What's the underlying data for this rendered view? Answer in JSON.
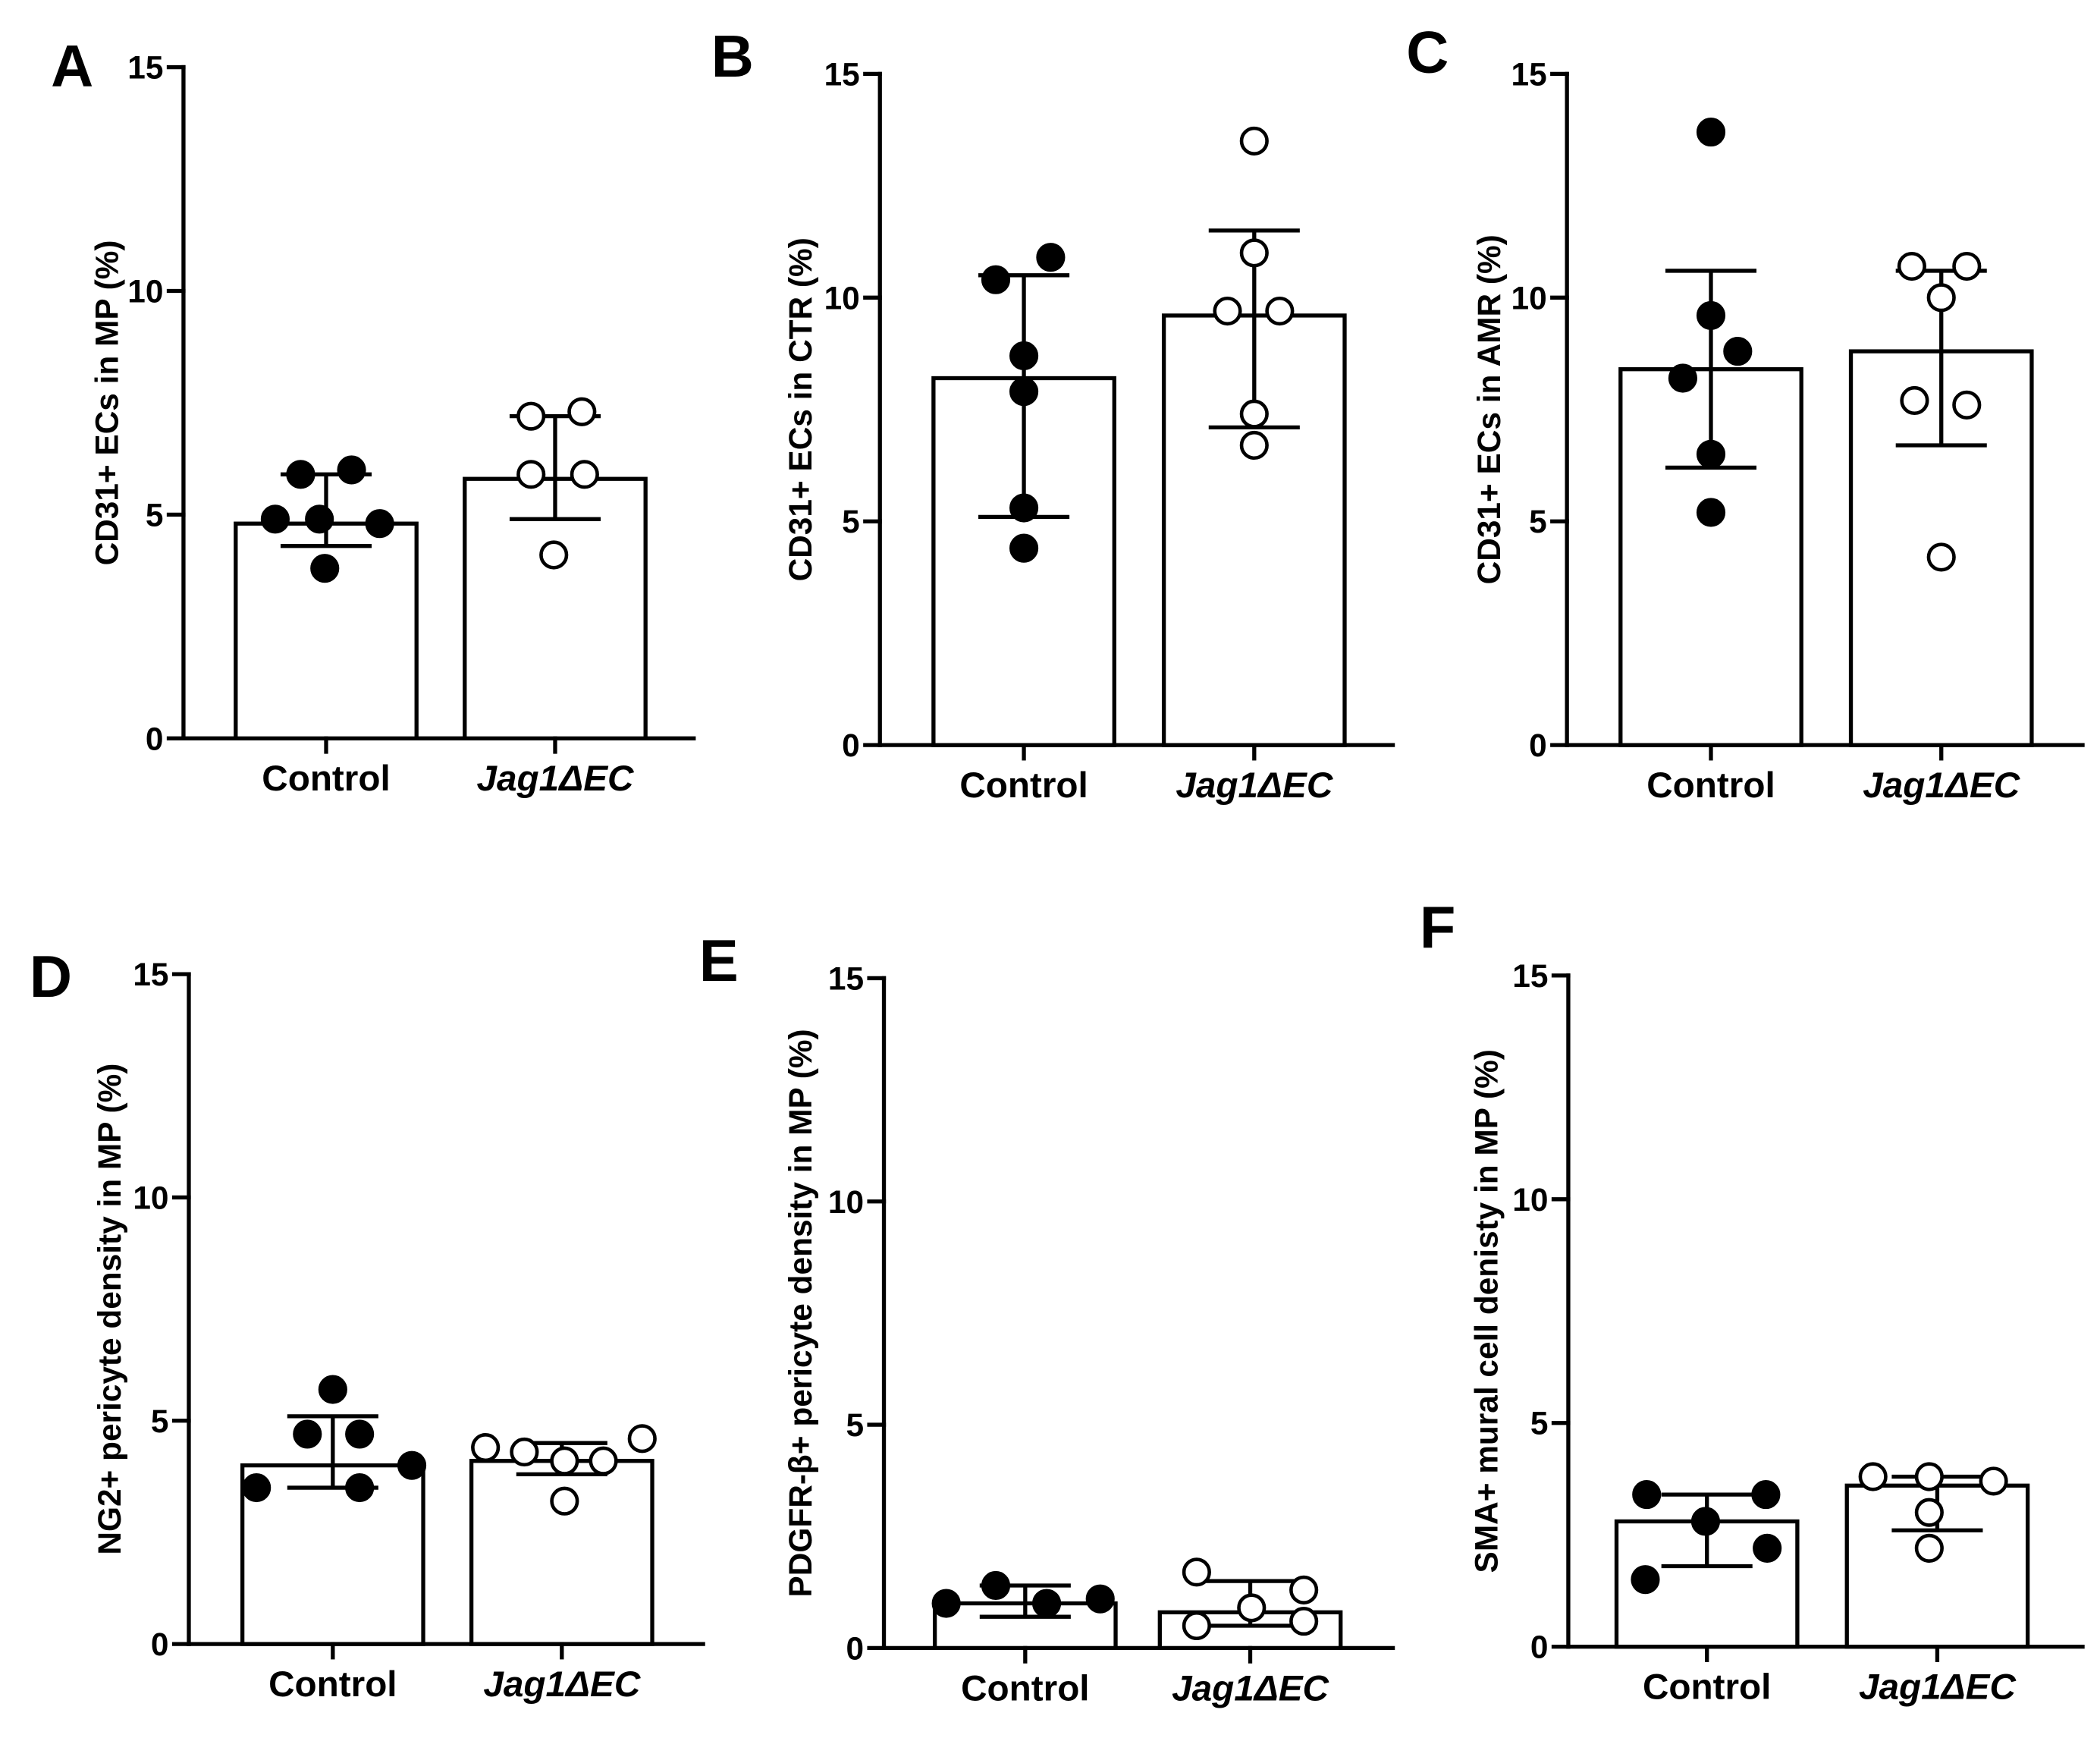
{
  "chart_data": [
    {
      "type": "bar",
      "panel_label": "A",
      "ylabel": "CD31+ ECs in MP (%)",
      "categories": [
        "Control",
        "Jag1ΔEC"
      ],
      "values": [
        4.8,
        5.8
      ],
      "error_low": [
        4.3,
        4.9
      ],
      "error_high": [
        5.9,
        7.2
      ],
      "points": [
        [
          5.9,
          6.0,
          4.9,
          4.9,
          4.8,
          3.8
        ],
        [
          7.2,
          7.3,
          5.9,
          5.9,
          4.1
        ]
      ],
      "marker_fill": [
        "#000000",
        "#ffffff"
      ],
      "ylim": [
        0,
        15
      ],
      "yticks": [
        0,
        5,
        10,
        15
      ]
    },
    {
      "type": "bar",
      "panel_label": "B",
      "ylabel": "CD31+ ECs in CTR (%)",
      "categories": [
        "Control",
        "Jag1ΔEC"
      ],
      "values": [
        8.2,
        9.6
      ],
      "error_low": [
        5.1,
        7.1
      ],
      "error_high": [
        10.5,
        11.5
      ],
      "points": [
        [
          10.4,
          10.9,
          8.7,
          7.9,
          5.3,
          4.4
        ],
        [
          13.5,
          11.0,
          9.7,
          9.7,
          7.4,
          6.7
        ]
      ],
      "marker_fill": [
        "#000000",
        "#ffffff"
      ],
      "ylim": [
        0,
        15
      ],
      "yticks": [
        0,
        5,
        10,
        15
      ]
    },
    {
      "type": "bar",
      "panel_label": "C",
      "ylabel": "CD31+ ECs in AMR (%)",
      "categories": [
        "Control",
        "Jag1ΔEC"
      ],
      "values": [
        8.4,
        8.8
      ],
      "error_low": [
        6.2,
        6.7
      ],
      "error_high": [
        10.6,
        10.6
      ],
      "points": [
        [
          13.7,
          9.6,
          8.8,
          8.2,
          6.5,
          5.2
        ],
        [
          10.7,
          10.7,
          10.0,
          7.7,
          7.6,
          4.2
        ]
      ],
      "marker_fill": [
        "#000000",
        "#ffffff"
      ],
      "ylim": [
        0,
        15
      ],
      "yticks": [
        0,
        5,
        10,
        15
      ]
    },
    {
      "type": "bar",
      "panel_label": "D",
      "ylabel": "NG2+ pericyte density in MP (%)",
      "categories": [
        "Control",
        "Jag1ΔEC"
      ],
      "values": [
        4.0,
        4.1
      ],
      "error_low": [
        3.5,
        3.8
      ],
      "error_high": [
        5.1,
        4.5
      ],
      "points": [
        [
          5.7,
          4.7,
          4.7,
          4.0,
          3.5,
          3.5
        ],
        [
          4.4,
          4.3,
          4.1,
          4.1,
          4.6,
          3.2
        ]
      ],
      "marker_fill": [
        "#000000",
        "#ffffff"
      ],
      "ylim": [
        0,
        15
      ],
      "yticks": [
        0,
        5,
        10,
        15
      ]
    },
    {
      "type": "bar",
      "panel_label": "E",
      "ylabel": "PDGFR-β+ pericyte density in MP (%)",
      "categories": [
        "Control",
        "Jag1ΔEC"
      ],
      "values": [
        1.0,
        0.8
      ],
      "error_low": [
        0.7,
        0.5
      ],
      "error_high": [
        1.4,
        1.5
      ],
      "points": [
        [
          1.4,
          1.0,
          1.0,
          1.1
        ],
        [
          1.7,
          1.3,
          0.9,
          0.5,
          0.6
        ]
      ],
      "marker_fill": [
        "#000000",
        "#ffffff"
      ],
      "ylim": [
        0,
        15
      ],
      "yticks": [
        0,
        5,
        10,
        15
      ]
    },
    {
      "type": "bar",
      "panel_label": "F",
      "ylabel": "SMA+ mural cell denisty in MP (%)",
      "categories": [
        "Control",
        "Jag1ΔEC"
      ],
      "values": [
        2.8,
        3.6
      ],
      "error_low": [
        1.8,
        2.6
      ],
      "error_high": [
        3.4,
        3.8
      ],
      "points": [
        [
          3.4,
          3.4,
          2.8,
          2.2,
          1.5
        ],
        [
          3.8,
          3.8,
          3.7,
          3.0,
          2.2
        ]
      ],
      "marker_fill": [
        "#000000",
        "#ffffff"
      ],
      "ylim": [
        0,
        15
      ],
      "yticks": [
        0,
        5,
        10,
        15
      ]
    }
  ]
}
